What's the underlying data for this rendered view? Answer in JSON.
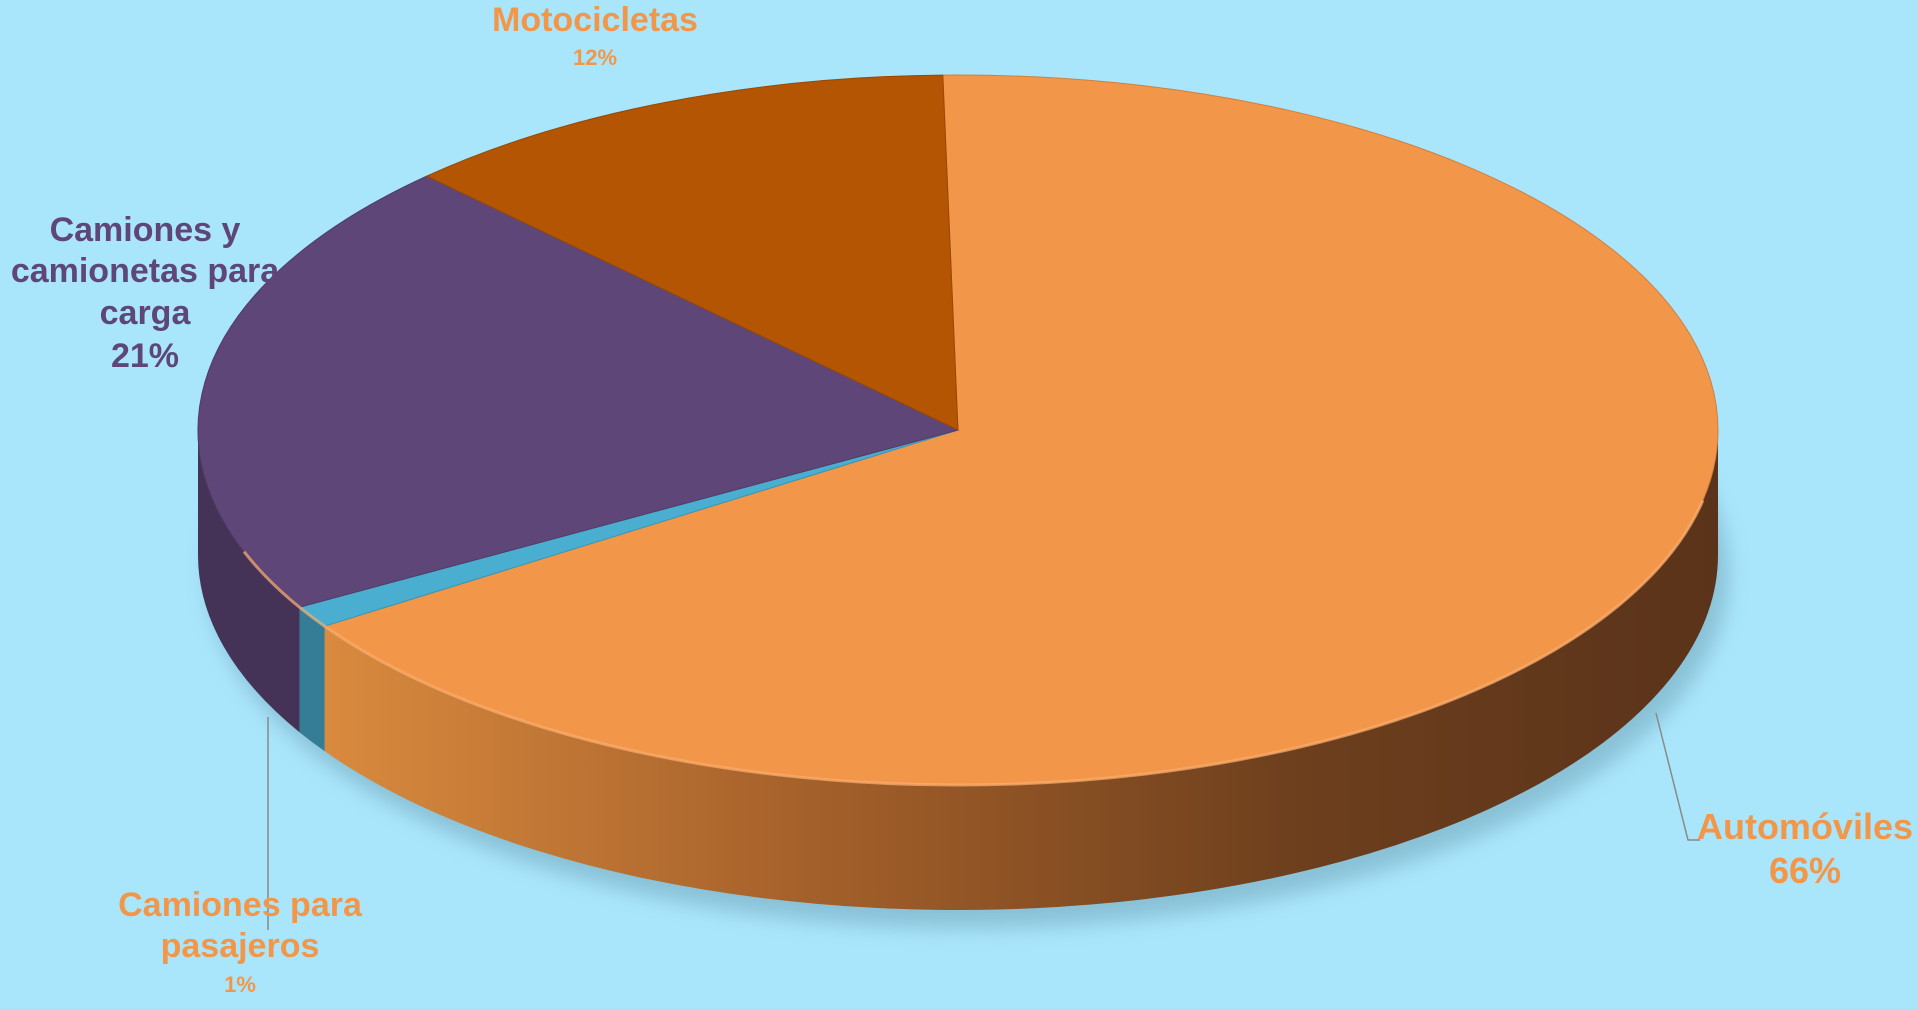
{
  "chart_data": {
    "type": "pie",
    "title": "",
    "style": "3d",
    "slices": [
      {
        "label": "Automóviles",
        "value": 66,
        "value_label": "66%",
        "color": "#f2964a"
      },
      {
        "label": "Camiones para pasajeros",
        "value": 1,
        "value_label": "1%",
        "color": "#4aaed0"
      },
      {
        "label": "Camiones y camionetas para carga",
        "value": 21,
        "value_label": "21%",
        "color": "#5e4778"
      },
      {
        "label": "Motocicletas",
        "value": 12,
        "value_label": "12%",
        "color": "#b35502"
      }
    ]
  },
  "labels": {
    "automoviles": {
      "name": "Automóviles",
      "pct": "66%"
    },
    "pasajeros": {
      "name_lines": [
        "Camiones para",
        "pasajeros"
      ],
      "pct": "1%"
    },
    "carga": {
      "name_lines": [
        "Camiones y",
        "camionetas para",
        "carga"
      ],
      "pct": "21%"
    },
    "motocicletas": {
      "name": "Motocicletas",
      "pct": "12%"
    }
  }
}
